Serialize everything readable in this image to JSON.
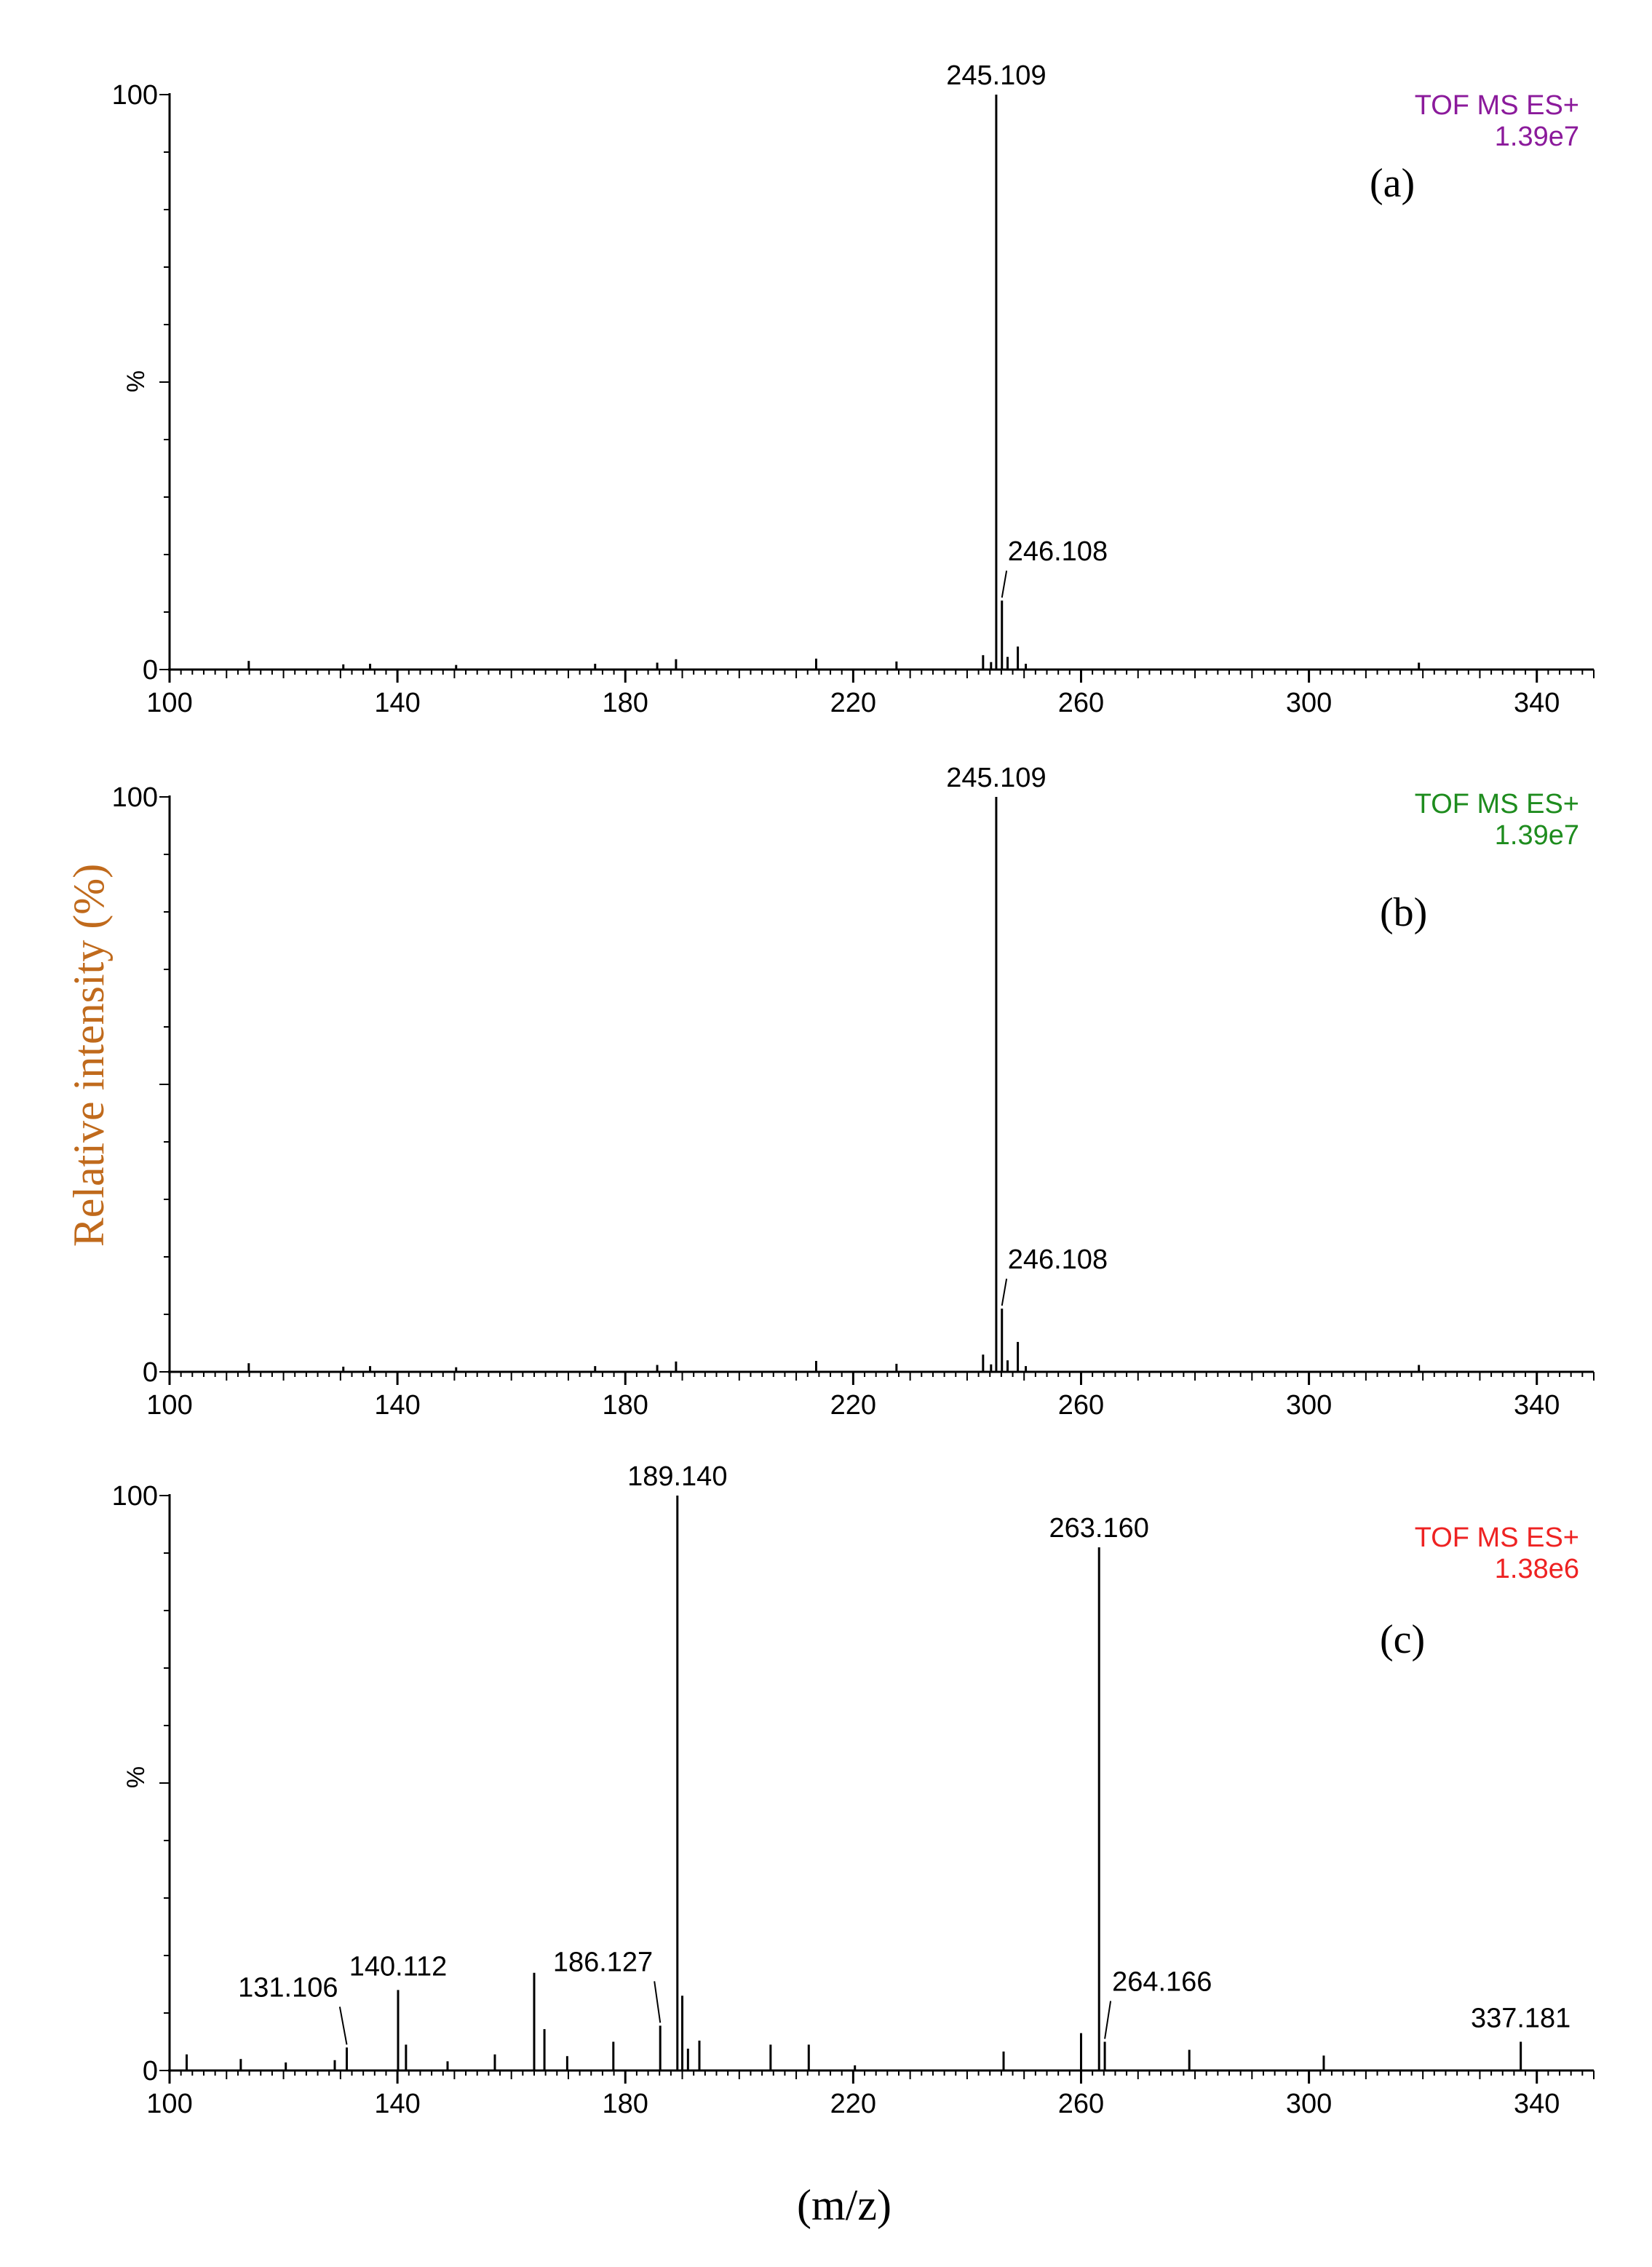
{
  "figure": {
    "y_axis_label": "Relative intensity (%)",
    "x_axis_label": "(m/z)"
  },
  "chart_data": [
    {
      "type": "bar",
      "panel_label": "(a)",
      "mode": "TOF MS ES+",
      "base_peak_intensity": "1.39e7",
      "color": "#8b1a9b",
      "ylabel": "%",
      "xlim": [
        100,
        350
      ],
      "ylim": [
        0,
        100
      ],
      "x_ticks": [
        100,
        140,
        180,
        220,
        260,
        300,
        340
      ],
      "y_ticks": [
        0,
        100
      ],
      "y_tick_labels": [
        "0",
        "100"
      ],
      "peaks": [
        {
          "x": 113.9,
          "y": 1.5
        },
        {
          "x": 130.5,
          "y": 0.9
        },
        {
          "x": 135.2,
          "y": 1.0
        },
        {
          "x": 150.3,
          "y": 0.8
        },
        {
          "x": 174.7,
          "y": 1.0
        },
        {
          "x": 185.6,
          "y": 1.2
        },
        {
          "x": 188.9,
          "y": 1.8
        },
        {
          "x": 213.5,
          "y": 1.9
        },
        {
          "x": 227.6,
          "y": 1.4
        },
        {
          "x": 242.8,
          "y": 2.5
        },
        {
          "x": 244.2,
          "y": 1.3
        },
        {
          "x": 245.109,
          "y": 100
        },
        {
          "x": 246.108,
          "y": 12
        },
        {
          "x": 247.1,
          "y": 2.2
        },
        {
          "x": 248.9,
          "y": 4.0
        },
        {
          "x": 250.3,
          "y": 1.0
        },
        {
          "x": 319.3,
          "y": 1.2
        }
      ],
      "labels": [
        {
          "text": "245.109",
          "x": 245.109,
          "y": 100
        },
        {
          "text": "246.108",
          "x": 246.108,
          "y": 12
        }
      ]
    },
    {
      "type": "bar",
      "panel_label": "(b)",
      "mode": "TOF MS ES+",
      "base_peak_intensity": "1.39e7",
      "color": "#1e8c1e",
      "ylabel": "",
      "xlim": [
        100,
        350
      ],
      "ylim": [
        0,
        100
      ],
      "x_ticks": [
        100,
        140,
        180,
        220,
        260,
        300,
        340
      ],
      "y_ticks": [
        0,
        100
      ],
      "y_tick_labels": [
        "0",
        "100"
      ],
      "peaks": [
        {
          "x": 113.9,
          "y": 1.5
        },
        {
          "x": 130.5,
          "y": 0.9
        },
        {
          "x": 135.2,
          "y": 1.0
        },
        {
          "x": 150.3,
          "y": 0.8
        },
        {
          "x": 174.7,
          "y": 1.0
        },
        {
          "x": 185.6,
          "y": 1.2
        },
        {
          "x": 188.9,
          "y": 1.8
        },
        {
          "x": 213.5,
          "y": 1.9
        },
        {
          "x": 227.6,
          "y": 1.4
        },
        {
          "x": 242.8,
          "y": 3.0
        },
        {
          "x": 244.2,
          "y": 1.3
        },
        {
          "x": 245.109,
          "y": 100
        },
        {
          "x": 246.108,
          "y": 11
        },
        {
          "x": 247.1,
          "y": 2.0
        },
        {
          "x": 248.9,
          "y": 5.2
        },
        {
          "x": 250.3,
          "y": 1.0
        },
        {
          "x": 319.3,
          "y": 1.2
        }
      ],
      "labels": [
        {
          "text": "245.109",
          "x": 245.109,
          "y": 100
        },
        {
          "text": "246.108",
          "x": 246.108,
          "y": 11
        }
      ]
    },
    {
      "type": "bar",
      "panel_label": "(c)",
      "mode": "TOF MS ES+",
      "base_peak_intensity": "1.38e6",
      "color": "#ee2222",
      "ylabel": "%",
      "xlim": [
        100,
        350
      ],
      "ylim": [
        0,
        100
      ],
      "x_ticks": [
        100,
        140,
        180,
        220,
        260,
        300,
        340
      ],
      "y_ticks": [
        0,
        100
      ],
      "y_tick_labels": [
        "0",
        "100"
      ],
      "peaks": [
        {
          "x": 103.0,
          "y": 2.8
        },
        {
          "x": 112.5,
          "y": 2.0
        },
        {
          "x": 120.4,
          "y": 1.4
        },
        {
          "x": 129.0,
          "y": 1.8
        },
        {
          "x": 131.106,
          "y": 4.0
        },
        {
          "x": 140.112,
          "y": 14
        },
        {
          "x": 141.5,
          "y": 4.5
        },
        {
          "x": 148.8,
          "y": 1.6
        },
        {
          "x": 157.1,
          "y": 2.8
        },
        {
          "x": 164.0,
          "y": 17
        },
        {
          "x": 165.8,
          "y": 7.2
        },
        {
          "x": 169.8,
          "y": 2.5
        },
        {
          "x": 177.9,
          "y": 5.0
        },
        {
          "x": 186.127,
          "y": 7.8
        },
        {
          "x": 189.14,
          "y": 100
        },
        {
          "x": 190.0,
          "y": 13
        },
        {
          "x": 191.0,
          "y": 3.8
        },
        {
          "x": 193.0,
          "y": 5.2
        },
        {
          "x": 205.5,
          "y": 4.5
        },
        {
          "x": 212.2,
          "y": 4.5
        },
        {
          "x": 220.3,
          "y": 0.9
        },
        {
          "x": 246.4,
          "y": 3.3
        },
        {
          "x": 260.0,
          "y": 6.5
        },
        {
          "x": 263.16,
          "y": 91
        },
        {
          "x": 264.166,
          "y": 5.0
        },
        {
          "x": 279.0,
          "y": 3.6
        },
        {
          "x": 302.6,
          "y": 2.6
        },
        {
          "x": 337.181,
          "y": 5.0
        }
      ],
      "labels": [
        {
          "text": "131.106",
          "x": 131.106,
          "y": 4.0
        },
        {
          "text": "140.112",
          "x": 140.112,
          "y": 14
        },
        {
          "text": "186.127",
          "x": 186.127,
          "y": 7.8
        },
        {
          "text": "189.140",
          "x": 189.14,
          "y": 100
        },
        {
          "text": "263.160",
          "x": 263.16,
          "y": 91
        },
        {
          "text": "264.166",
          "x": 264.166,
          "y": 5.0
        },
        {
          "text": "337.181",
          "x": 337.181,
          "y": 5.0
        }
      ]
    }
  ]
}
